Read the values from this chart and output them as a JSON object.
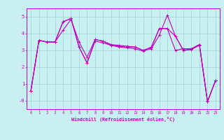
{
  "title": "",
  "xlabel": "Windchill (Refroidissement éolien,°C)",
  "bg_color": "#c8f0f0",
  "line_color": "#c000c0",
  "grid_color": "#a8d8d8",
  "series1": {
    "x": [
      0,
      1,
      2,
      3,
      4,
      5,
      6,
      7,
      8,
      9,
      10,
      11,
      12,
      13,
      14,
      15,
      16,
      17,
      18,
      19,
      20,
      21,
      22,
      23
    ],
    "y": [
      0.6,
      3.6,
      3.5,
      3.5,
      4.7,
      4.9,
      3.2,
      2.25,
      3.65,
      3.55,
      3.3,
      3.25,
      3.2,
      3.2,
      3.0,
      3.2,
      4.3,
      4.3,
      3.0,
      3.1,
      3.1,
      3.35,
      -0.05,
      1.2
    ]
  },
  "series2": {
    "x": [
      0,
      1,
      2,
      3,
      4,
      5,
      6,
      7,
      8,
      9,
      10,
      11,
      12,
      13,
      14,
      15,
      16,
      17,
      18,
      19,
      20,
      21,
      22,
      23
    ],
    "y": [
      0.6,
      3.6,
      3.5,
      3.5,
      4.2,
      4.85,
      3.5,
      2.6,
      3.65,
      3.55,
      3.35,
      3.3,
      3.25,
      3.2,
      3.0,
      3.1,
      3.9,
      5.1,
      3.85,
      3.0,
      3.1,
      3.35,
      -0.05,
      1.2
    ]
  },
  "series3": {
    "x": [
      0,
      1,
      2,
      3,
      4,
      5,
      6,
      7,
      8,
      9,
      10,
      11,
      12,
      13,
      14,
      15,
      16,
      17,
      18,
      19,
      20,
      21,
      22,
      23
    ],
    "y": [
      0.6,
      3.6,
      3.5,
      3.5,
      4.7,
      4.9,
      3.2,
      2.25,
      3.55,
      3.45,
      3.3,
      3.2,
      3.15,
      3.1,
      2.95,
      3.15,
      4.3,
      4.3,
      3.85,
      3.0,
      3.05,
      3.3,
      -0.05,
      1.2
    ]
  },
  "ylim": [
    -0.5,
    5.5
  ],
  "xlim": [
    -0.5,
    23.5
  ],
  "yticks": [
    0,
    1,
    2,
    3,
    4,
    5
  ],
  "ytick_labels": [
    "-0",
    "1",
    "2",
    "3",
    "4",
    "5"
  ],
  "xticks": [
    0,
    1,
    2,
    3,
    4,
    5,
    6,
    7,
    8,
    9,
    10,
    11,
    12,
    13,
    14,
    15,
    16,
    17,
    18,
    19,
    20,
    21,
    22,
    23
  ]
}
